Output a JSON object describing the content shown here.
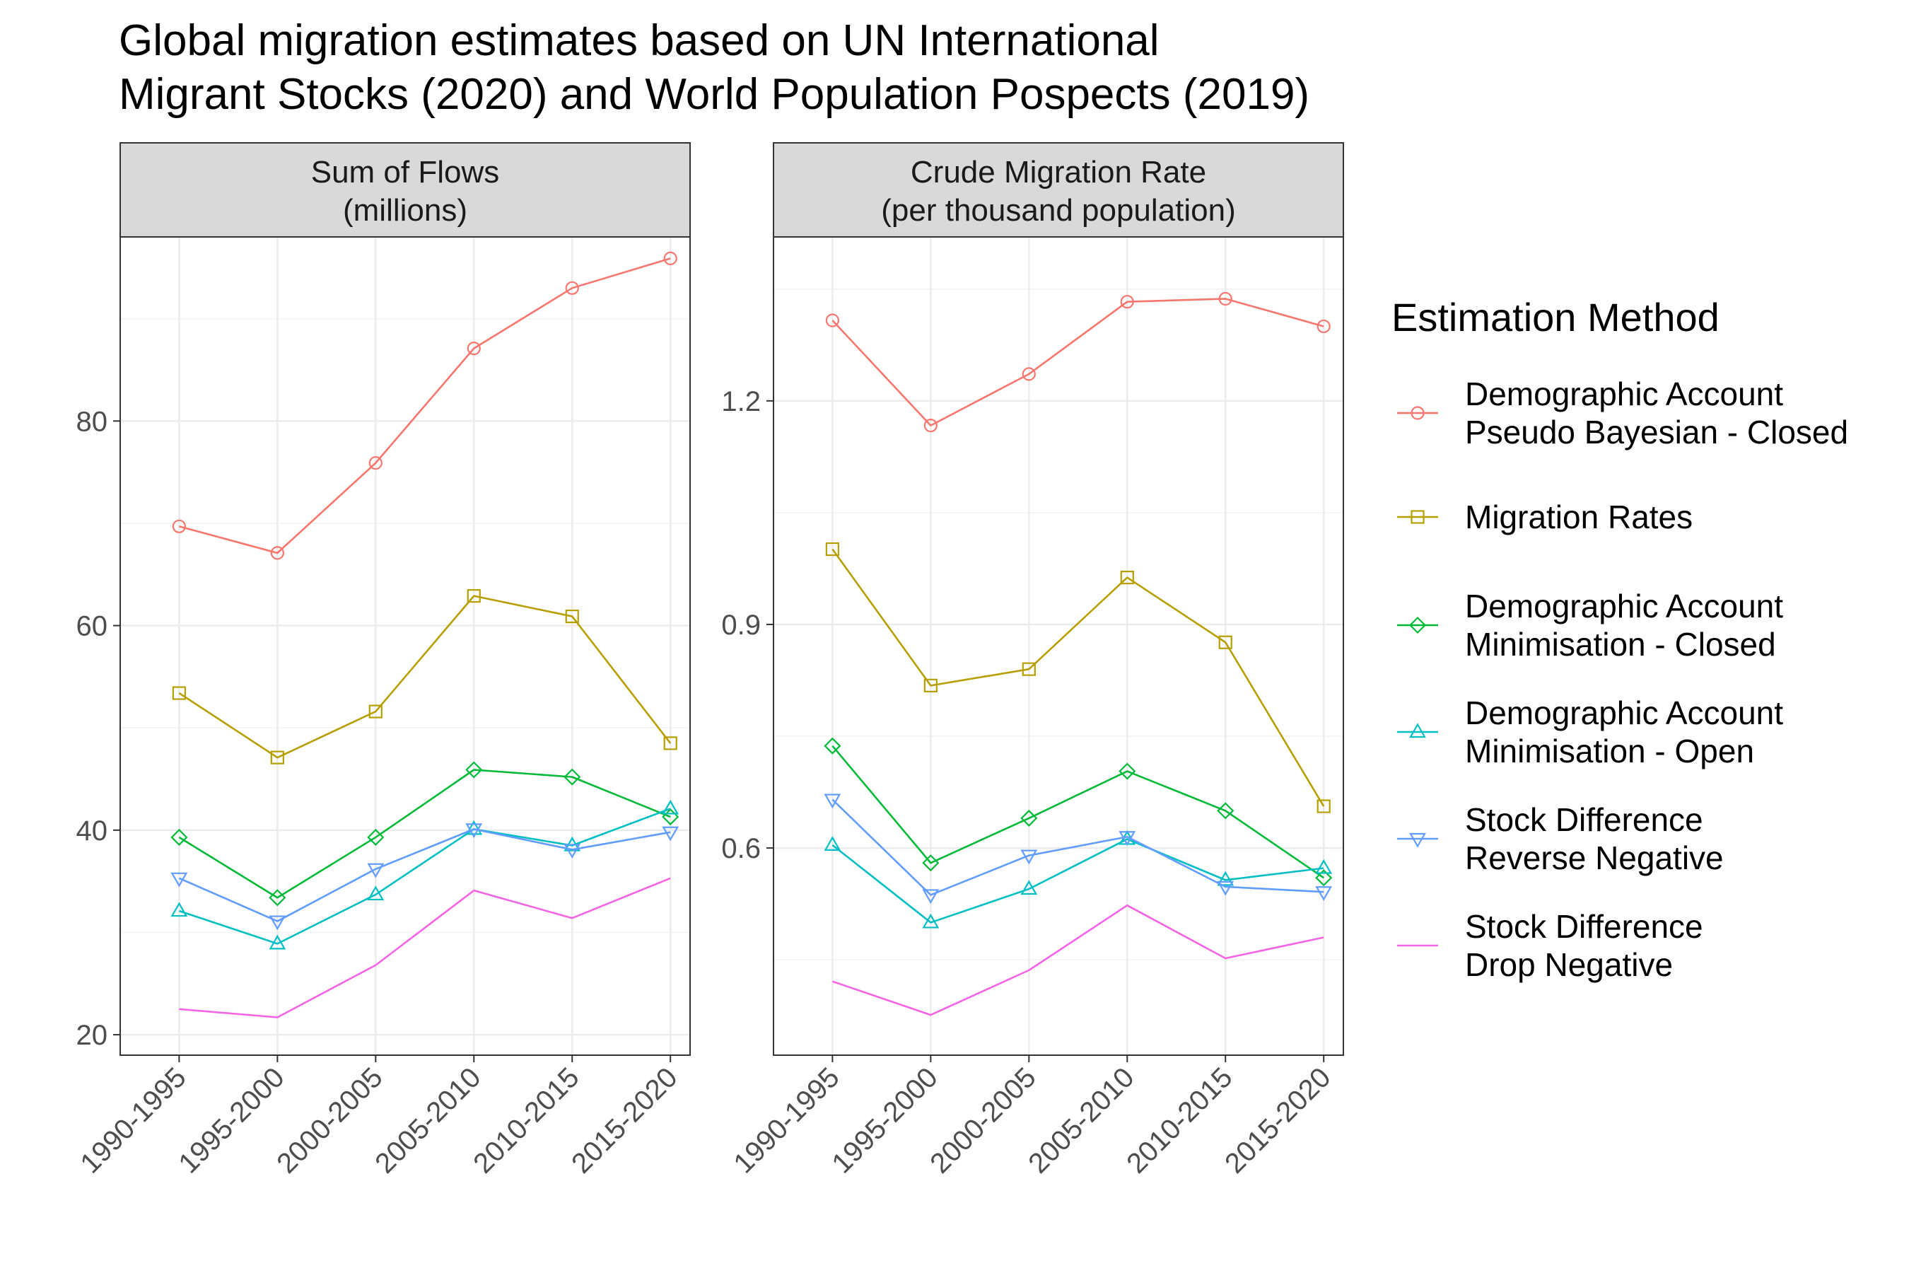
{
  "title_lines": [
    "Global migration estimates based on UN International",
    "Migrant Stocks (2020) and World Population Pospects (2019)"
  ],
  "legend": {
    "title": "Estimation Method",
    "entries": [
      {
        "lines": [
          "Demographic Account",
          "Pseudo Bayesian - Closed"
        ],
        "color": "#F8766D",
        "shape": "circle"
      },
      {
        "lines": [
          "Migration Rates"
        ],
        "color": "#B79F00",
        "shape": "square"
      },
      {
        "lines": [
          "Demographic Account",
          "Minimisation - Closed"
        ],
        "color": "#00BA38",
        "shape": "diamond"
      },
      {
        "lines": [
          "Demographic Account",
          "Minimisation - Open"
        ],
        "color": "#00BFC4",
        "shape": "triangle-up"
      },
      {
        "lines": [
          "Stock Difference",
          "Reverse Negative"
        ],
        "color": "#619CFF",
        "shape": "triangle-down"
      },
      {
        "lines": [
          "Stock Difference",
          "Drop Negative"
        ],
        "color": "#F564E3",
        "shape": "none"
      }
    ]
  },
  "chart_data": [
    {
      "type": "line",
      "strip_lines": [
        "Sum of Flows",
        "(millions)"
      ],
      "categories": [
        "1990-1995",
        "1995-2000",
        "2000-2005",
        "2005-2010",
        "2010-2015",
        "2015-2020"
      ],
      "yticks": [
        20,
        40,
        60,
        80
      ],
      "ylim": [
        18,
        98
      ],
      "grid": true,
      "series": [
        {
          "name": "Demographic Account Pseudo Bayesian - Closed",
          "values": [
            69.7,
            67.1,
            75.9,
            87.1,
            93.0,
            95.9
          ]
        },
        {
          "name": "Migration Rates",
          "values": [
            53.4,
            47.1,
            51.6,
            62.9,
            60.9,
            48.5
          ]
        },
        {
          "name": "Demographic Account Minimisation - Closed",
          "values": [
            39.3,
            33.4,
            39.3,
            45.9,
            45.2,
            41.3
          ]
        },
        {
          "name": "Demographic Account Minimisation - Open",
          "values": [
            32.1,
            28.9,
            33.7,
            40.1,
            38.5,
            42.1
          ]
        },
        {
          "name": "Stock Difference Reverse Negative",
          "values": [
            35.3,
            31.1,
            36.2,
            40.1,
            38.1,
            39.8
          ]
        },
        {
          "name": "Stock Difference Drop Negative",
          "values": [
            22.5,
            21.7,
            26.8,
            34.1,
            31.4,
            35.3
          ]
        }
      ]
    },
    {
      "type": "line",
      "strip_lines": [
        "Crude Migration Rate",
        "(per thousand population)"
      ],
      "categories": [
        "1990-1995",
        "1995-2000",
        "2000-2005",
        "2005-2010",
        "2010-2015",
        "2015-2020"
      ],
      "yticks": [
        0.6,
        0.9,
        1.2
      ],
      "ylim": [
        0.322,
        1.42
      ],
      "grid": true,
      "series": [
        {
          "name": "Demographic Account Pseudo Bayesian - Closed",
          "values": [
            1.308,
            1.167,
            1.236,
            1.333,
            1.337,
            1.3
          ]
        },
        {
          "name": "Migration Rates",
          "values": [
            1.001,
            0.818,
            0.84,
            0.963,
            0.876,
            0.656
          ]
        },
        {
          "name": "Demographic Account Minimisation - Closed",
          "values": [
            0.737,
            0.58,
            0.64,
            0.703,
            0.65,
            0.56
          ]
        },
        {
          "name": "Demographic Account Minimisation - Open",
          "values": [
            0.604,
            0.5,
            0.545,
            0.612,
            0.557,
            0.573
          ]
        },
        {
          "name": "Stock Difference Reverse Negative",
          "values": [
            0.665,
            0.537,
            0.59,
            0.615,
            0.548,
            0.541
          ]
        },
        {
          "name": "Stock Difference Drop Negative",
          "values": [
            0.421,
            0.376,
            0.436,
            0.523,
            0.452,
            0.48
          ]
        }
      ]
    }
  ]
}
